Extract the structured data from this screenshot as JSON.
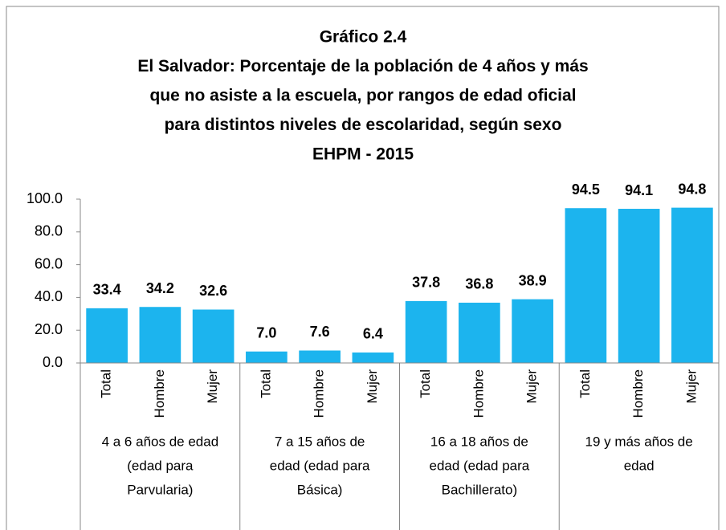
{
  "chart_data": {
    "type": "bar",
    "title": [
      "Gráfico 2.4",
      "El Salvador: Porcentaje de la población de 4 años y más",
      "que no asiste a la escuela, por rangos de edad oficial",
      "para distintos niveles de escolaridad, según sexo",
      "EHPM - 2015"
    ],
    "categories": [
      "Total",
      "Hombre",
      "Mujer",
      "Total",
      "Hombre",
      "Mujer",
      "Total",
      "Hombre",
      "Mujer",
      "Total",
      "Hombre",
      "Mujer"
    ],
    "groups": [
      [
        "4 a 6 años de edad",
        "(edad para",
        "Parvularia)"
      ],
      [
        "7 a 15 años de",
        "edad (edad para",
        "Básica)"
      ],
      [
        "16 a 18 años de",
        "edad (edad para",
        "Bachillerato)"
      ],
      [
        "19  y más años de",
        "edad"
      ]
    ],
    "values": [
      33.4,
      34.2,
      32.6,
      7.0,
      7.6,
      6.4,
      37.8,
      36.8,
      38.9,
      94.5,
      94.1,
      94.8
    ],
    "value_labels": [
      "33.4",
      "34.2",
      "32.6",
      "7.0",
      "7.6",
      "6.4",
      "37.8",
      "36.8",
      "38.9",
      "94.5",
      "94.1",
      "94.8"
    ],
    "color": "#1cb4ee",
    "ylim": [
      0,
      100
    ],
    "yticks": [
      {
        "value": 0,
        "label": "0.0"
      },
      {
        "value": 20,
        "label": "20.0"
      },
      {
        "value": 40,
        "label": "40.0"
      },
      {
        "value": 60,
        "label": "60.0"
      },
      {
        "value": 80,
        "label": "80.0"
      },
      {
        "value": 100,
        "label": "100.0"
      }
    ]
  }
}
